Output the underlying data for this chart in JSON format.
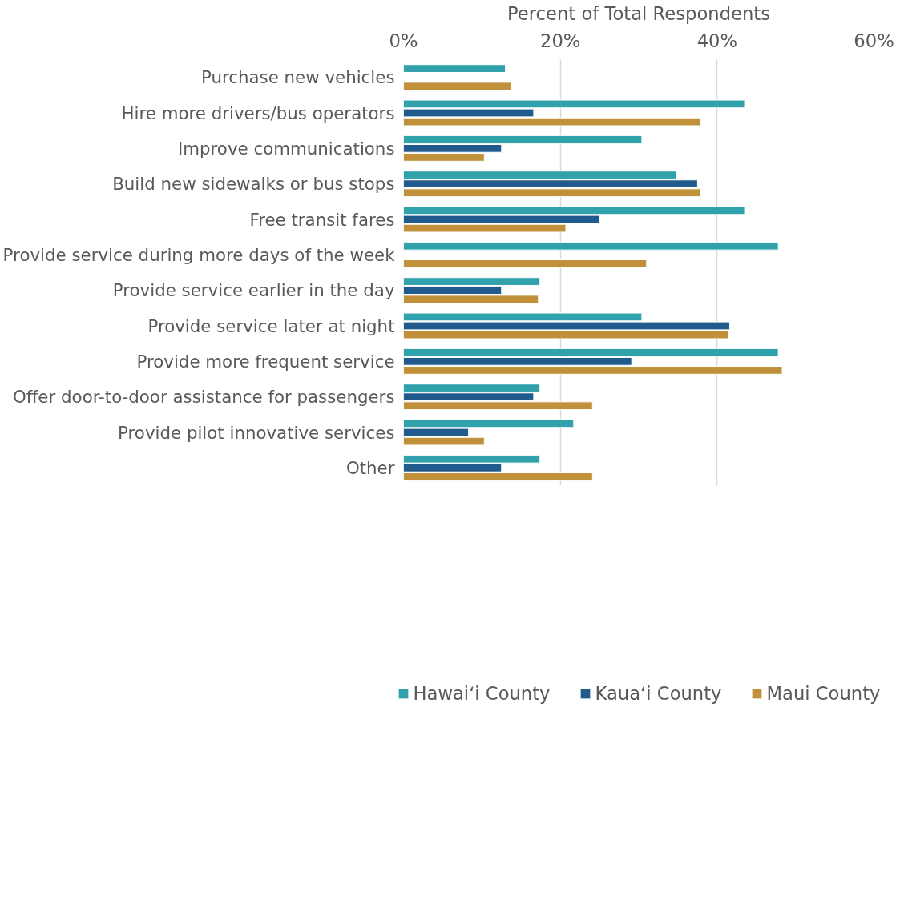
{
  "chart_data": {
    "type": "bar",
    "orientation": "horizontal",
    "xlabel": "Percent of Total Respondents",
    "categories": [
      "Purchase new vehicles",
      "Hire more drivers/bus operators",
      "Improve communications",
      "Build new sidewalks or bus stops",
      "Free transit fares",
      "Provide service during more days of the week",
      "Provide service earlier in the day",
      "Provide service later at night",
      "Provide more frequent service",
      "Offer door-to-door assistance for passengers",
      "Provide pilot innovative services",
      "Other"
    ],
    "series": [
      {
        "name": "Hawaiʻi County",
        "color": "#31a2ac",
        "values": [
          13.0,
          43.5,
          30.4,
          34.8,
          43.5,
          47.8,
          17.4,
          30.4,
          47.8,
          17.4,
          21.7,
          17.4
        ]
      },
      {
        "name": "Kauaʻi County",
        "color": "#215a8c",
        "values": [
          null,
          16.6,
          12.5,
          37.5,
          25.0,
          null,
          12.5,
          41.6,
          29.1,
          16.6,
          8.3,
          12.5
        ]
      },
      {
        "name": "Maui County",
        "color": "#c0913a",
        "values": [
          13.8,
          37.9,
          10.3,
          37.9,
          20.7,
          31.0,
          17.2,
          41.4,
          48.3,
          24.1,
          10.3,
          24.1
        ]
      }
    ],
    "xlim": [
      0,
      60
    ],
    "xticks": [
      {
        "value": 0,
        "label": "0%"
      },
      {
        "value": 20,
        "label": "20%"
      },
      {
        "value": 40,
        "label": "40%"
      },
      {
        "value": 60,
        "label": "60%"
      }
    ],
    "grid": "x",
    "legend": "bottom"
  }
}
